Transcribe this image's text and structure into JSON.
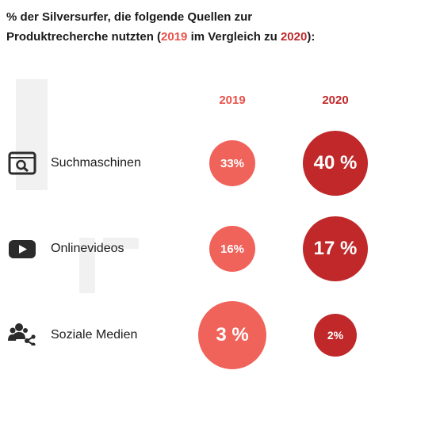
{
  "title": {
    "line1": "% der Silversurfer, die folgende Quellen zur",
    "line2_prefix": "Produktrecherche nutzten (",
    "year_a": "2019",
    "middle": " im Vergleich zu ",
    "year_b": "2020",
    "suffix": "):"
  },
  "colors": {
    "y2019": "#f0635b",
    "y2020": "#c0282a",
    "header2019": "#e8514a",
    "header2020": "#c0282a",
    "icon": "#2b2b2b"
  },
  "chart_data": {
    "type": "bubble",
    "series": [
      {
        "name": "2019",
        "values": [
          33,
          16,
          3
        ],
        "labels": [
          "33%",
          "16%",
          "3 %"
        ]
      },
      {
        "name": "2020",
        "values": [
          40,
          17,
          2
        ],
        "labels": [
          "40 %",
          "17 %",
          "2%"
        ]
      }
    ],
    "categories": [
      "Suchmaschinen",
      "Onlinevideos",
      "Soziale Medien"
    ],
    "icons": [
      "search-icon",
      "video-play-icon",
      "social-network-icon"
    ]
  }
}
